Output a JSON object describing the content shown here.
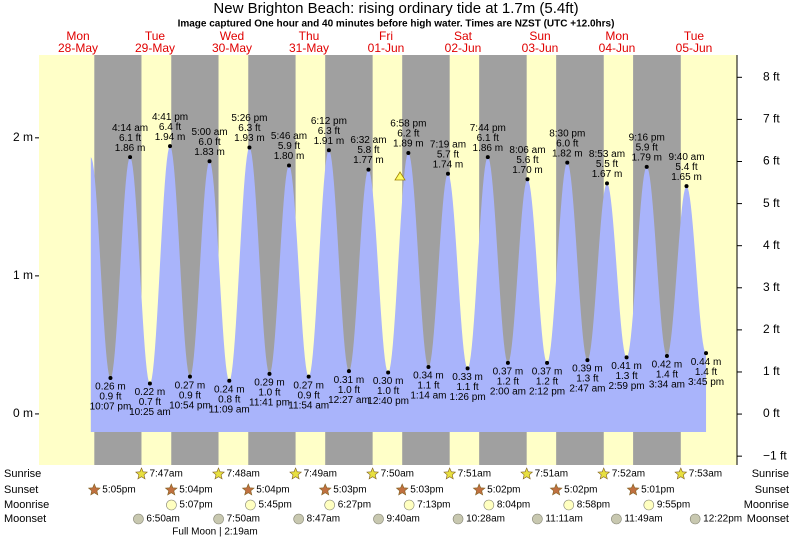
{
  "chart_data": {
    "type": "tide",
    "title": "New Brighton Beach: rising  ordinary tide at 1.7m (5.4ft)",
    "subtitle": "Image captured One hour and 40 minutes before high water. Times are NZST (UTC +12.0hrs)",
    "days": [
      {
        "weekday": "Mon",
        "date": "28-May"
      },
      {
        "weekday": "Tue",
        "date": "29-May"
      },
      {
        "weekday": "Wed",
        "date": "30-May"
      },
      {
        "weekday": "Thu",
        "date": "31-May"
      },
      {
        "weekday": "Fri",
        "date": "01-Jun"
      },
      {
        "weekday": "Sat",
        "date": "02-Jun"
      },
      {
        "weekday": "Sun",
        "date": "03-Jun"
      },
      {
        "weekday": "Mon",
        "date": "04-Jun"
      },
      {
        "weekday": "Tue",
        "date": "05-Jun"
      }
    ],
    "tides": {
      "times": [
        "10:07 pm",
        "4:14 am",
        "10:25 am",
        "4:41 pm",
        "10:54 pm",
        "5:00 am",
        "11:09 am",
        "5:26 pm",
        "11:41 pm",
        "5:46 am",
        "11:54 am",
        "6:12 pm",
        "12:27 am",
        "6:32 am",
        "12:40 pm",
        "6:58 pm",
        "1:14 am",
        "7:19 am",
        "1:26 pm",
        "7:44 pm",
        "2:00 am",
        "8:06 am",
        "2:12 pm",
        "8:30 pm",
        "2:47 am",
        "8:53 am",
        "2:59 pm",
        "9:16 pm",
        "3:34 am",
        "9:40 am",
        "3:45 pm"
      ],
      "values": [
        0.26,
        1.86,
        0.22,
        1.94,
        0.27,
        1.83,
        0.24,
        1.93,
        0.29,
        1.8,
        0.27,
        1.91,
        0.31,
        1.77,
        0.3,
        1.89,
        0.34,
        1.74,
        0.33,
        1.86,
        0.37,
        1.7,
        0.37,
        1.82,
        0.39,
        1.67,
        0.41,
        1.79,
        0.42,
        1.65,
        0.44
      ],
      "value_labels": [
        "0.26 m",
        "1.86 m",
        "0.22 m",
        "1.94 m",
        "0.27 m",
        "1.83 m",
        "0.24 m",
        "1.93 m",
        "0.29 m",
        "1.80 m",
        "0.27 m",
        "1.91 m",
        "0.31 m",
        "1.77 m",
        "0.30 m",
        "1.89 m",
        "0.34 m",
        "1.74 m",
        "0.33 m",
        "1.86 m",
        "0.37 m",
        "1.70 m",
        "0.37 m",
        "1.82 m",
        "0.39 m",
        "1.67 m",
        "0.41 m",
        "1.79 m",
        "0.42 m",
        "1.65 m",
        "0.44 m"
      ],
      "ft_labels": [
        "0.9 ft",
        "6.1 ft",
        "0.7 ft",
        "6.4 ft",
        "0.9 ft",
        "6.0 ft",
        "0.8 ft",
        "6.3 ft",
        "1.0 ft",
        "5.9 ft",
        "0.9 ft",
        "6.3 ft",
        "1.0 ft",
        "5.8 ft",
        "1.0 ft",
        "6.2 ft",
        "1.1 ft",
        "5.7 ft",
        "1.1 ft",
        "6.1 ft",
        "1.2 ft",
        "5.6 ft",
        "1.2 ft",
        "6.0 ft",
        "1.3 ft",
        "5.5 ft",
        "1.3 ft",
        "5.9 ft",
        "1.4 ft",
        "5.4 ft",
        "1.4 ft"
      ]
    },
    "ylim": [
      -0.37,
      2.6
    ],
    "yticks": [
      {
        "value": 0,
        "label": "0 m"
      },
      {
        "value": 1,
        "label": "1 m"
      },
      {
        "value": 2,
        "label": "2 m"
      }
    ],
    "y2lim": [
      -1.21,
      8.53
    ],
    "y2ticks": [
      {
        "value": -1,
        "label": "−1 ft"
      },
      {
        "value": 0,
        "label": "0 ft"
      },
      {
        "value": 1,
        "label": "1 ft"
      },
      {
        "value": 2,
        "label": "2 ft"
      },
      {
        "value": 3,
        "label": "3 ft"
      },
      {
        "value": 4,
        "label": "4 ft"
      },
      {
        "value": 5,
        "label": "5 ft"
      },
      {
        "value": 6,
        "label": "6 ft"
      },
      {
        "value": 7,
        "label": "7 ft"
      },
      {
        "value": 8,
        "label": "8 ft"
      }
    ],
    "rows": {
      "sunrise": {
        "label": "Sunrise",
        "times": [
          null,
          "7:47am",
          "7:48am",
          "7:49am",
          "7:50am",
          "7:51am",
          "7:51am",
          "7:52am",
          "7:53am"
        ]
      },
      "sunset": {
        "label": "Sunset",
        "times": [
          "5:05pm",
          "5:04pm",
          "5:04pm",
          "5:03pm",
          "5:03pm",
          "5:02pm",
          "5:02pm",
          "5:01pm",
          null
        ]
      },
      "moonrise": {
        "label": "Moonrise",
        "times": [
          null,
          "5:07pm",
          "5:45pm",
          "6:27pm",
          "7:13pm",
          "8:04pm",
          "8:58pm",
          "9:55pm",
          null
        ]
      },
      "moonset": {
        "label": "Moonset",
        "times": [
          null,
          "6:50am",
          "7:50am",
          "8:47am",
          "9:40am",
          "10:28am",
          "11:11am",
          "11:49am",
          "12:22pm"
        ]
      }
    },
    "moon_phase": "Full Moon | 2:19am",
    "colors": {
      "day": "#ffffc8",
      "night": "#a0a0a0",
      "water": "#a9b4fb",
      "weekday": "#e00000"
    }
  }
}
